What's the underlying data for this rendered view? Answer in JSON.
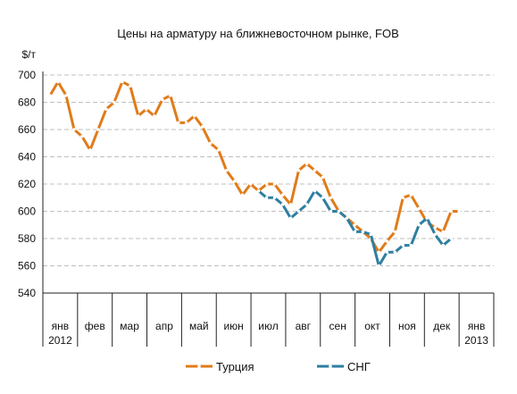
{
  "chart_data": {
    "type": "line",
    "title": "Цены на арматуру на ближневосточном рынке, FOB",
    "ylabel": "$/т",
    "ylim": [
      540,
      700
    ],
    "yticks": [
      540,
      560,
      580,
      600,
      620,
      640,
      660,
      680,
      700
    ],
    "grid": true,
    "legend_position": "bottom",
    "x_period_start": "янв 2012",
    "x_period_end": "янв 2013",
    "month_labels": [
      {
        "month": "янв",
        "year": "2012"
      },
      {
        "month": "фев",
        "year": ""
      },
      {
        "month": "мар",
        "year": ""
      },
      {
        "month": "апр",
        "year": ""
      },
      {
        "month": "май",
        "year": ""
      },
      {
        "month": "июн",
        "year": ""
      },
      {
        "month": "июл",
        "year": ""
      },
      {
        "month": "авг",
        "year": ""
      },
      {
        "month": "сен",
        "year": ""
      },
      {
        "month": "окт",
        "year": ""
      },
      {
        "month": "ноя",
        "year": ""
      },
      {
        "month": "дек",
        "year": ""
      },
      {
        "month": "янв",
        "year": "2013"
      }
    ],
    "series": [
      {
        "name": "Турция",
        "color": "#e07b1a",
        "values": [
          685,
          695,
          685,
          660,
          655,
          645,
          660,
          675,
          680,
          695,
          692,
          670,
          675,
          670,
          682,
          685,
          665,
          665,
          670,
          662,
          650,
          645,
          630,
          622,
          612,
          620,
          615,
          620,
          620,
          612,
          605,
          630,
          635,
          630,
          625,
          610,
          600,
          595,
          590,
          585,
          580,
          570,
          578,
          585,
          610,
          612,
          602,
          592,
          588,
          585,
          600,
          600
        ]
      },
      {
        "name": "СНГ",
        "color": "#2e7ea0",
        "start_index": 26,
        "values": [
          615,
          610,
          610,
          605,
          595,
          600,
          605,
          615,
          610,
          600,
          600,
          595,
          585,
          585,
          583,
          560,
          570,
          570,
          575,
          575,
          590,
          595,
          583,
          575,
          580
        ]
      }
    ]
  }
}
